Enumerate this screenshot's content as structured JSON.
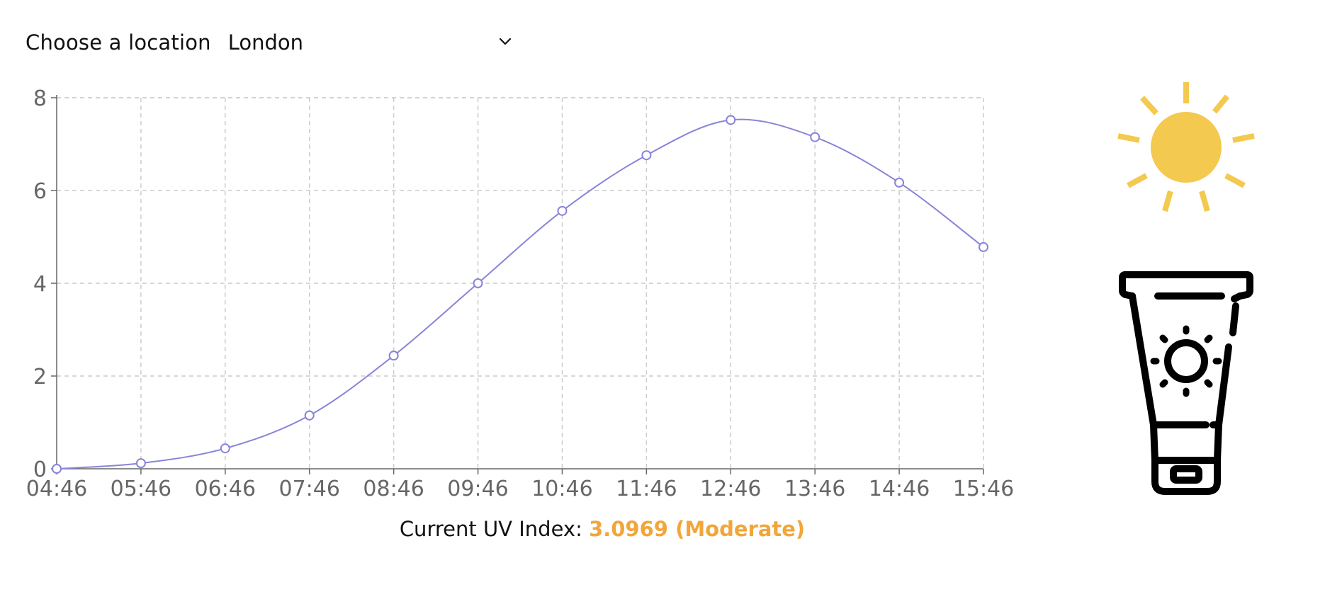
{
  "location": {
    "label": "Choose a location",
    "selected": "London",
    "icon": "chevron-down-icon"
  },
  "chart_data": {
    "type": "line",
    "x": [
      "04:46",
      "05:46",
      "06:46",
      "07:46",
      "08:46",
      "09:46",
      "10:46",
      "11:46",
      "12:46",
      "13:46",
      "14:46",
      "15:46"
    ],
    "series": [
      {
        "values": [
          0,
          0.12,
          0.44,
          1.15,
          2.44,
          4.0,
          5.56,
          6.76,
          7.52,
          7.15,
          6.17,
          4.78
        ]
      }
    ],
    "yticks": [
      "0",
      "2",
      "4",
      "6",
      "8"
    ],
    "ylim": [
      0,
      8
    ],
    "grid": true,
    "line_color": "#8884d8"
  },
  "uv": {
    "label": "Current UV Index:",
    "value": "3.0969 (Moderate)",
    "value_color": "#f2a63a"
  },
  "icons": {
    "sun": "sun-icon",
    "sunscreen": "sunscreen-icon",
    "sun_color": "#f4c94f"
  }
}
